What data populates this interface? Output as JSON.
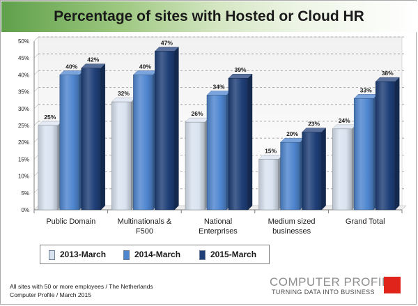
{
  "chart_data": {
    "type": "bar",
    "title": "Percentage of sites with Hosted or Cloud HR",
    "categories": [
      [
        "Public Domain"
      ],
      [
        "Multinationals &",
        "F500"
      ],
      [
        "National",
        "Enterprises"
      ],
      [
        "Medium sized",
        "businesses"
      ],
      [
        "Grand Total"
      ]
    ],
    "series": [
      {
        "name": "2013-March",
        "values": [
          25,
          32,
          26,
          15,
          24
        ],
        "labels": [
          "25%",
          "32%",
          "26%",
          "15%",
          "24%"
        ],
        "color": "#d9e3f0"
      },
      {
        "name": "2014-March",
        "values": [
          40,
          40,
          34,
          20,
          33
        ],
        "labels": [
          "40%",
          "40%",
          "34%",
          "20%",
          "33%"
        ],
        "color": "#4f86d0"
      },
      {
        "name": "2015-March",
        "values": [
          42,
          47,
          39,
          23,
          38
        ],
        "labels": [
          "42%",
          "47%",
          "39%",
          "23%",
          "38%"
        ],
        "color": "#1f3f78"
      }
    ],
    "y_ticks": [
      "0%",
      "5%",
      "10%",
      "15%",
      "20%",
      "25%",
      "30%",
      "35%",
      "40%",
      "45%",
      "50%"
    ],
    "ylim": [
      0,
      50
    ],
    "grid": "dashed horizontal",
    "legend": "bottom-left",
    "xlabel": "",
    "ylabel": ""
  },
  "footnote": {
    "line1": "All sites with 50 or more employees / The Netherlands",
    "line2": "Computer Profile / March 2015"
  },
  "brand": {
    "name": "COMPUTER PROFILE",
    "tagline": "TURNING DATA INTO BUSINESS",
    "accent_color": "#e0241b"
  }
}
